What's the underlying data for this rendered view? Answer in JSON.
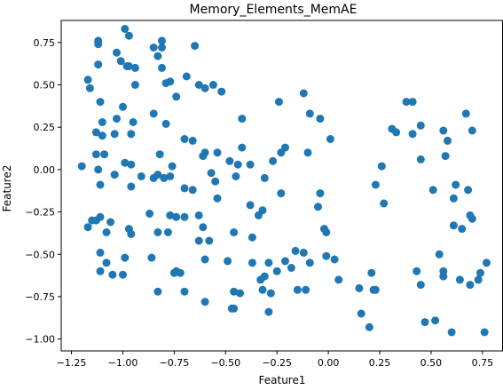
{
  "chart_data": {
    "type": "scatter",
    "title": "Memory_Elements_MemAE",
    "xlabel": "Feature1",
    "ylabel": "Feature2",
    "xlim": [
      -1.3,
      0.85
    ],
    "ylim": [
      -1.07,
      0.88
    ],
    "xticks": [
      -1.25,
      -1.0,
      -0.75,
      -0.5,
      -0.25,
      0.0,
      0.25,
      0.5,
      0.75
    ],
    "xtick_labels": [
      "−1.25",
      "−1.00",
      "−0.75",
      "−0.50",
      "−0.25",
      "0.00",
      "0.25",
      "0.50",
      "0.75"
    ],
    "yticks": [
      -1.0,
      -0.75,
      -0.5,
      -0.25,
      0.0,
      0.25,
      0.5,
      0.75
    ],
    "ytick_labels": [
      "−1.00",
      "−0.75",
      "−0.50",
      "−0.25",
      "0.00",
      "0.25",
      "0.50",
      "0.75"
    ],
    "grid": false,
    "color": "#1f77b4",
    "points": [
      [
        -0.99,
        0.83
      ],
      [
        -0.97,
        0.79
      ],
      [
        -0.81,
        0.76
      ],
      [
        -0.65,
        0.73
      ],
      [
        -1.12,
        0.76
      ],
      [
        -1.12,
        0.74
      ],
      [
        -0.85,
        0.72
      ],
      [
        -0.81,
        0.72
      ],
      [
        -1.03,
        0.69
      ],
      [
        -0.83,
        0.67
      ],
      [
        -1.01,
        0.64
      ],
      [
        -1.12,
        0.62
      ],
      [
        -0.98,
        0.61
      ],
      [
        -0.97,
        0.61
      ],
      [
        -0.81,
        0.6
      ],
      [
        -0.94,
        0.6
      ],
      [
        -1.17,
        0.53
      ],
      [
        -0.69,
        0.55
      ],
      [
        -0.79,
        0.51
      ],
      [
        -0.77,
        0.52
      ],
      [
        -0.94,
        0.5
      ],
      [
        -0.63,
        0.5
      ],
      [
        -0.6,
        0.48
      ],
      [
        -1.16,
        0.48
      ],
      [
        -0.56,
        0.5
      ],
      [
        -0.52,
        0.46
      ],
      [
        -0.74,
        0.43
      ],
      [
        -0.12,
        0.45
      ],
      [
        -1.11,
        0.4
      ],
      [
        -0.24,
        0.4
      ],
      [
        0.38,
        0.4
      ],
      [
        0.41,
        0.4
      ],
      [
        -1.0,
        0.37
      ],
      [
        -0.85,
        0.33
      ],
      [
        -0.09,
        0.33
      ],
      [
        -0.04,
        0.3
      ],
      [
        -1.03,
        0.3
      ],
      [
        -0.42,
        0.3
      ],
      [
        -1.1,
        0.28
      ],
      [
        -0.95,
        0.28
      ],
      [
        0.67,
        0.33
      ],
      [
        0.31,
        0.24
      ],
      [
        0.45,
        0.26
      ],
      [
        0.56,
        0.23
      ],
      [
        -0.79,
        0.27
      ],
      [
        -1.13,
        0.22
      ],
      [
        -1.04,
        0.21
      ],
      [
        -0.96,
        0.21
      ],
      [
        -1.1,
        0.2
      ],
      [
        0.33,
        0.22
      ],
      [
        0.41,
        0.21
      ],
      [
        0.7,
        0.23
      ],
      [
        -0.7,
        0.18
      ],
      [
        -0.66,
        0.17
      ],
      [
        0.01,
        0.18
      ],
      [
        -0.21,
        0.13
      ],
      [
        0.58,
        0.17
      ],
      [
        -0.6,
        0.1
      ],
      [
        -0.54,
        0.1
      ],
      [
        -0.23,
        0.1
      ],
      [
        -0.1,
        0.1
      ],
      [
        -0.61,
        0.08
      ],
      [
        -0.42,
        0.13
      ],
      [
        -1.13,
        0.09
      ],
      [
        -1.09,
        0.09
      ],
      [
        -0.82,
        0.09
      ],
      [
        -0.48,
        0.05
      ],
      [
        -0.44,
        0.03
      ],
      [
        -0.27,
        0.05
      ],
      [
        0.45,
        0.06
      ],
      [
        0.57,
        0.08
      ],
      [
        -0.38,
        0.03
      ],
      [
        -1.2,
        0.02
      ],
      [
        -0.99,
        0.04
      ],
      [
        -0.96,
        0.03
      ],
      [
        -1.12,
        0.0
      ],
      [
        -0.76,
        0.02
      ],
      [
        0.26,
        0.02
      ],
      [
        -0.83,
        -0.03
      ],
      [
        -0.57,
        -0.02
      ],
      [
        -0.45,
        -0.04
      ],
      [
        -0.8,
        -0.05
      ],
      [
        -0.85,
        -0.05
      ],
      [
        -0.77,
        -0.04
      ],
      [
        -0.55,
        -0.07
      ],
      [
        -0.31,
        -0.05
      ],
      [
        -1.04,
        -0.03
      ],
      [
        -0.91,
        -0.04
      ],
      [
        -0.7,
        -0.11
      ],
      [
        -0.66,
        -0.12
      ],
      [
        -1.11,
        -0.09
      ],
      [
        -0.96,
        -0.1
      ],
      [
        0.23,
        -0.09
      ],
      [
        0.51,
        -0.12
      ],
      [
        0.62,
        -0.09
      ],
      [
        -0.54,
        -0.17
      ],
      [
        -0.38,
        -0.21
      ],
      [
        -0.23,
        -0.14
      ],
      [
        -0.04,
        -0.14
      ],
      [
        0.68,
        -0.12
      ],
      [
        0.61,
        -0.17
      ],
      [
        0.27,
        -0.2
      ],
      [
        -0.05,
        -0.22
      ],
      [
        -0.87,
        -0.26
      ],
      [
        -1.15,
        -0.3
      ],
      [
        -1.13,
        -0.3
      ],
      [
        -1.06,
        -0.31
      ],
      [
        -1.11,
        -0.28
      ],
      [
        -0.77,
        -0.27
      ],
      [
        -0.63,
        -0.27
      ],
      [
        -0.74,
        -0.28
      ],
      [
        -0.7,
        -0.28
      ],
      [
        -0.34,
        -0.27
      ],
      [
        -0.32,
        -0.24
      ],
      [
        -1.17,
        -0.34
      ],
      [
        -1.08,
        -0.37
      ],
      [
        -0.96,
        -0.38
      ],
      [
        -0.97,
        -0.35
      ],
      [
        -0.83,
        -0.37
      ],
      [
        -0.78,
        -0.37
      ],
      [
        -0.61,
        -0.34
      ],
      [
        -0.46,
        -0.37
      ],
      [
        -0.02,
        -0.35
      ],
      [
        0.61,
        -0.33
      ],
      [
        0.69,
        -0.27
      ],
      [
        0.7,
        -0.29
      ],
      [
        0.65,
        -0.35
      ],
      [
        -0.37,
        -0.4
      ],
      [
        -0.63,
        -0.42
      ],
      [
        -0.58,
        -0.42
      ],
      [
        -0.16,
        -0.48
      ],
      [
        -0.12,
        -0.49
      ],
      [
        -0.01,
        -0.37
      ],
      [
        -1.11,
        -0.49
      ],
      [
        -0.99,
        -0.52
      ],
      [
        -0.86,
        -0.52
      ],
      [
        -0.6,
        -0.53
      ],
      [
        -0.49,
        -0.54
      ],
      [
        -0.37,
        -0.55
      ],
      [
        -0.29,
        -0.55
      ],
      [
        -0.21,
        -0.54
      ],
      [
        -0.09,
        -0.55
      ],
      [
        -0.01,
        -0.51
      ],
      [
        0.03,
        -0.53
      ],
      [
        0.54,
        -0.5
      ],
      [
        -1.08,
        -0.55
      ],
      [
        -0.74,
        -0.6
      ],
      [
        -0.75,
        -0.61
      ],
      [
        -0.72,
        -0.61
      ],
      [
        -1.11,
        -0.6
      ],
      [
        -1.05,
        -0.62
      ],
      [
        -1.0,
        -0.62
      ],
      [
        -0.31,
        -0.63
      ],
      [
        -0.18,
        -0.58
      ],
      [
        -0.25,
        -0.6
      ],
      [
        0.21,
        -0.61
      ],
      [
        0.43,
        -0.6
      ],
      [
        0.56,
        -0.6
      ],
      [
        0.56,
        -0.63
      ],
      [
        0.64,
        -0.65
      ],
      [
        0.74,
        -0.61
      ],
      [
        0.77,
        -0.55
      ],
      [
        0.73,
        -0.65
      ],
      [
        0.69,
        -0.68
      ],
      [
        0.45,
        -0.68
      ],
      [
        -0.33,
        -0.65
      ],
      [
        0.05,
        -0.65
      ],
      [
        -0.83,
        -0.72
      ],
      [
        -0.7,
        -0.72
      ],
      [
        -0.6,
        -0.78
      ],
      [
        -0.46,
        -0.72
      ],
      [
        -0.43,
        -0.73
      ],
      [
        -0.32,
        -0.71
      ],
      [
        -0.28,
        -0.73
      ],
      [
        -0.15,
        -0.71
      ],
      [
        -0.11,
        -0.71
      ],
      [
        0.15,
        -0.7
      ],
      [
        0.22,
        -0.71
      ],
      [
        0.23,
        -0.71
      ],
      [
        -0.47,
        -0.82
      ],
      [
        -0.46,
        -0.82
      ],
      [
        -0.29,
        -0.84
      ],
      [
        0.16,
        -0.85
      ],
      [
        0.52,
        -0.89
      ],
      [
        0.47,
        -0.9
      ],
      [
        0.2,
        -0.93
      ],
      [
        0.6,
        -0.96
      ],
      [
        0.76,
        -0.96
      ]
    ]
  }
}
